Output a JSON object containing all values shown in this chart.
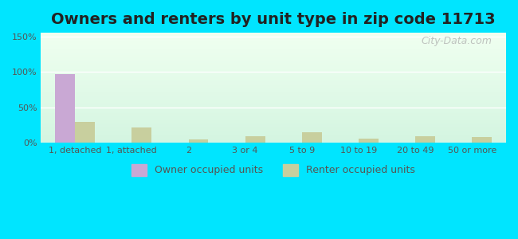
{
  "title": "Owners and renters by unit type in zip code 11713",
  "categories": [
    "1, detached",
    "1, attached",
    "2",
    "3 or 4",
    "5 to 9",
    "10 to 19",
    "20 to 49",
    "50 or more"
  ],
  "owner_values": [
    97,
    1,
    0,
    0,
    0,
    0,
    0,
    0
  ],
  "renter_values": [
    30,
    22,
    5,
    10,
    15,
    6,
    10,
    8
  ],
  "owner_color": "#c9a8d4",
  "renter_color": "#c8cf9e",
  "background_outer": "#00e5ff",
  "background_inner_top": "#f0fff0",
  "background_inner_bottom": "#d4f5e0",
  "ylim": [
    0,
    155
  ],
  "yticks": [
    0,
    50,
    100,
    150
  ],
  "ytick_labels": [
    "0%",
    "50%",
    "100%",
    "150%"
  ],
  "title_fontsize": 14,
  "legend_labels": [
    "Owner occupied units",
    "Renter occupied units"
  ],
  "bar_width": 0.35,
  "watermark": "City-Data.com"
}
